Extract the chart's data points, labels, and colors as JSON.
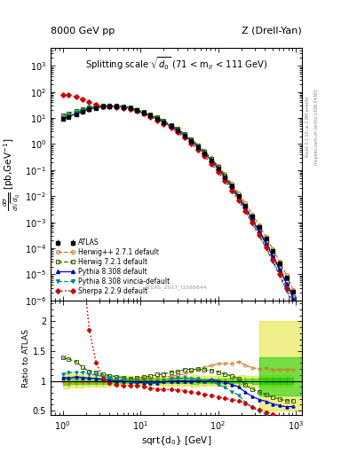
{
  "title_left": "8000 GeV pp",
  "title_right": "Z (Drell-Yan)",
  "plot_title": "Splitting scale $\\sqrt{d_0}$ (71 < m$_{ll}$ < 111 GeV)",
  "xlabel": "sqrt{d_0} [GeV]",
  "ylabel_ratio": "Ratio to ATLAS",
  "watermark": "ATLAS_2017_I1589844",
  "rivet_text": "Rivet 3.1.10, ≥ 2.8M events",
  "arxiv_text": "mcplots.cern.ch [arXiv:1306.3436]",
  "atlas_x": [
    1.0,
    1.2,
    1.5,
    1.8,
    2.2,
    2.7,
    3.3,
    4.0,
    4.9,
    6.0,
    7.4,
    9.0,
    11.0,
    13.5,
    16.5,
    20.0,
    25.0,
    30.0,
    37.0,
    45.0,
    55.0,
    67.0,
    82.0,
    100.0,
    123.0,
    150.0,
    184.0,
    225.0,
    276.0,
    338.0,
    414.0,
    507.0,
    621.0,
    760.0,
    931.0
  ],
  "atlas_y": [
    9.0,
    11.0,
    14.0,
    17.5,
    21.5,
    24.5,
    27.0,
    28.0,
    28.0,
    26.5,
    24.0,
    20.0,
    16.0,
    12.5,
    9.5,
    7.0,
    4.8,
    3.3,
    2.1,
    1.3,
    0.77,
    0.44,
    0.23,
    0.115,
    0.054,
    0.024,
    0.01,
    0.0042,
    0.00168,
    0.00064,
    0.00023,
    8e-05,
    2.6e-05,
    7.8e-06,
    2.1e-06
  ],
  "atlas_err_y": [
    0.4,
    0.4,
    0.5,
    0.6,
    0.7,
    0.8,
    0.8,
    0.8,
    0.8,
    0.7,
    0.6,
    0.5,
    0.4,
    0.3,
    0.25,
    0.18,
    0.13,
    0.09,
    0.06,
    0.04,
    0.022,
    0.012,
    0.006,
    0.003,
    0.0015,
    0.0007,
    0.0003,
    0.00012,
    5e-05,
    2e-05,
    7e-06,
    2.5e-06,
    8e-07,
    2.5e-07,
    7e-08
  ],
  "herwig271_x": [
    1.0,
    1.2,
    1.5,
    1.8,
    2.2,
    2.7,
    3.3,
    4.0,
    4.9,
    6.0,
    7.4,
    9.0,
    11.0,
    13.5,
    16.5,
    20.0,
    25.0,
    30.0,
    37.0,
    45.0,
    55.0,
    67.0,
    82.0,
    100.0,
    123.0,
    150.0,
    184.0,
    225.0,
    276.0,
    338.0,
    414.0,
    507.0,
    621.0,
    760.0,
    931.0
  ],
  "herwig271_y": [
    9.0,
    10.5,
    13.5,
    17.0,
    21.0,
    24.0,
    26.5,
    27.5,
    27.5,
    26.5,
    24.0,
    20.5,
    16.5,
    13.0,
    10.0,
    7.4,
    5.2,
    3.6,
    2.35,
    1.5,
    0.92,
    0.54,
    0.29,
    0.148,
    0.07,
    0.031,
    0.0132,
    0.0053,
    0.00205,
    0.00077,
    0.00028,
    9.5e-05,
    3.1e-05,
    9.3e-06,
    2.5e-06
  ],
  "herwig721_x": [
    1.0,
    1.2,
    1.5,
    1.8,
    2.2,
    2.7,
    3.3,
    4.0,
    4.9,
    6.0,
    7.4,
    9.0,
    11.0,
    13.5,
    16.5,
    20.0,
    25.0,
    30.0,
    37.0,
    45.0,
    55.0,
    67.0,
    82.0,
    100.0,
    123.0,
    150.0,
    184.0,
    225.0,
    276.0,
    338.0,
    414.0,
    507.0,
    621.0,
    760.0,
    931.0
  ],
  "herwig721_y": [
    12.5,
    15.0,
    18.5,
    21.5,
    25.0,
    28.0,
    30.0,
    30.5,
    30.0,
    28.0,
    25.0,
    21.0,
    17.0,
    13.5,
    10.5,
    7.8,
    5.5,
    3.8,
    2.5,
    1.55,
    0.92,
    0.52,
    0.27,
    0.132,
    0.06,
    0.026,
    0.0104,
    0.0039,
    0.00145,
    0.00052,
    0.000177,
    5.8e-05,
    1.8e-05,
    5.2e-06,
    1.4e-06
  ],
  "pythia_x": [
    1.0,
    1.2,
    1.5,
    1.8,
    2.2,
    2.7,
    3.3,
    4.0,
    4.9,
    6.0,
    7.4,
    9.0,
    11.0,
    13.5,
    16.5,
    20.0,
    25.0,
    30.0,
    37.0,
    45.0,
    55.0,
    67.0,
    82.0,
    100.0,
    123.0,
    150.0,
    184.0,
    225.0,
    276.0,
    338.0,
    414.0,
    507.0,
    621.0,
    760.0,
    931.0
  ],
  "pythia_y": [
    9.5,
    11.5,
    15.0,
    18.5,
    22.5,
    25.5,
    27.5,
    28.5,
    28.0,
    26.5,
    23.5,
    19.5,
    15.5,
    12.0,
    9.2,
    6.9,
    4.8,
    3.3,
    2.1,
    1.3,
    0.78,
    0.44,
    0.235,
    0.115,
    0.053,
    0.0225,
    0.009,
    0.0034,
    0.00124,
    0.00044,
    0.000151,
    4.9e-05,
    1.52e-05,
    4.4e-06,
    1.2e-06
  ],
  "vinc_x": [
    1.0,
    1.2,
    1.5,
    1.8,
    2.2,
    2.7,
    3.3,
    4.0,
    4.9,
    6.0,
    7.4,
    9.0,
    11.0,
    13.5,
    16.5,
    20.0,
    25.0,
    30.0,
    37.0,
    45.0,
    55.0,
    67.0,
    82.0,
    100.0,
    123.0,
    150.0,
    184.0,
    225.0,
    276.0,
    338.0,
    414.0,
    507.0,
    621.0,
    760.0,
    931.0
  ],
  "vinc_y": [
    10.0,
    12.5,
    16.0,
    20.0,
    24.0,
    27.0,
    29.0,
    29.5,
    29.0,
    27.0,
    24.0,
    20.0,
    16.0,
    12.5,
    9.5,
    7.1,
    5.0,
    3.45,
    2.2,
    1.35,
    0.8,
    0.44,
    0.228,
    0.108,
    0.048,
    0.0197,
    0.0076,
    0.0027,
    0.00093,
    0.00031,
    0.000101,
    3.1e-05,
    9e-06,
    2.4e-06,
    6e-07
  ],
  "sherpa_x": [
    1.0,
    1.2,
    1.5,
    1.8,
    2.2,
    2.7,
    3.3,
    4.0,
    4.9,
    6.0,
    7.4,
    9.0,
    11.0,
    13.5,
    16.5,
    20.0,
    25.0,
    30.0,
    37.0,
    45.0,
    55.0,
    67.0,
    82.0,
    100.0,
    123.0,
    150.0,
    184.0,
    225.0,
    276.0,
    338.0,
    414.0,
    507.0,
    621.0,
    760.0,
    931.0
  ],
  "sherpa_y": [
    78.0,
    75.0,
    65.0,
    52.0,
    40.0,
    32.0,
    28.0,
    27.0,
    26.0,
    24.5,
    22.0,
    18.5,
    14.5,
    11.0,
    8.2,
    6.0,
    4.1,
    2.8,
    1.75,
    1.05,
    0.61,
    0.34,
    0.175,
    0.084,
    0.038,
    0.0165,
    0.0067,
    0.0026,
    0.00095,
    0.00033,
    0.00011,
    3.5e-05,
    1.05e-05,
    2.9e-06,
    7.5e-07
  ],
  "atlas_color": "#000000",
  "herwig271_color": "#cc7722",
  "herwig721_color": "#336600",
  "pythia_color": "#0000cc",
  "vinc_color": "#008888",
  "sherpa_color": "#cc0000",
  "ylim_main": [
    1e-06,
    5000.0
  ],
  "ylim_ratio": [
    0.42,
    2.35
  ],
  "xlim": [
    0.7,
    1200.0
  ],
  "ratio_yticks": [
    0.5,
    1.0,
    1.5,
    2.0
  ],
  "ratio_yticklabels": [
    "0.5",
    "1",
    "1.5",
    "2"
  ]
}
